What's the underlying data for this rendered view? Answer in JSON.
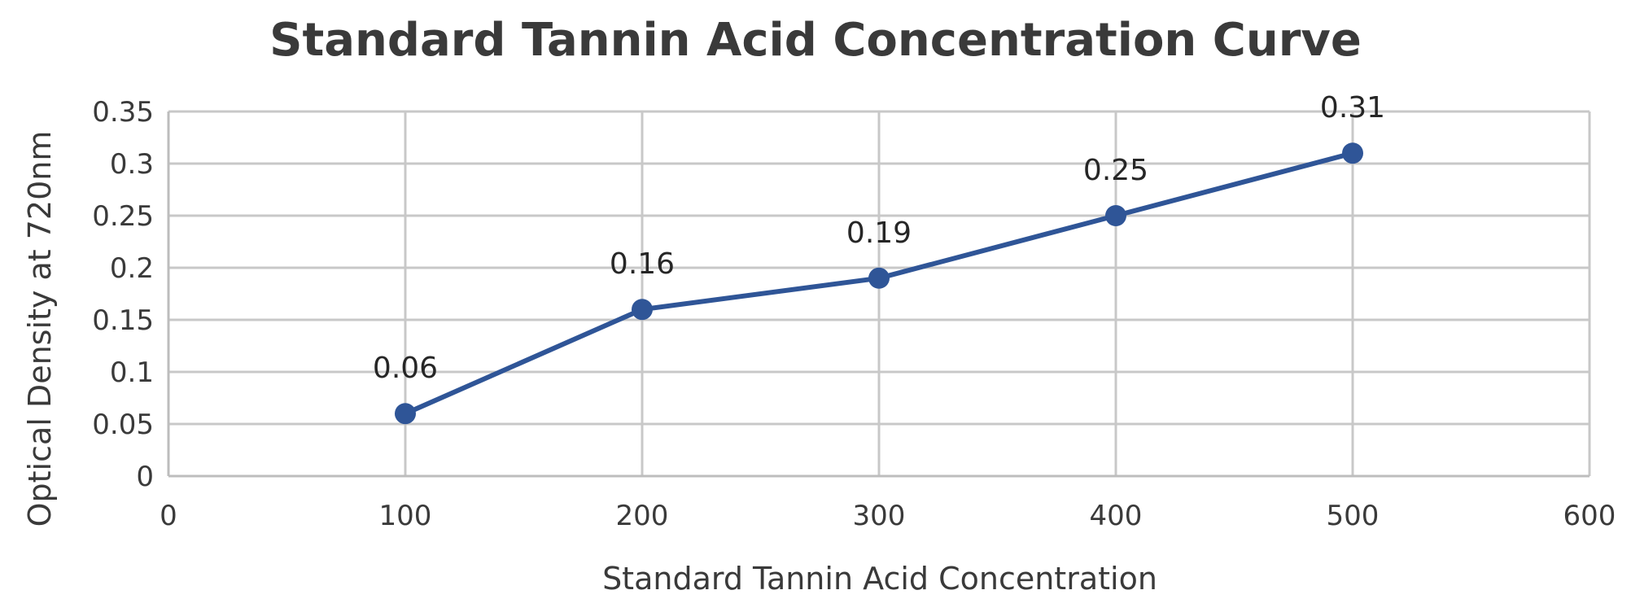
{
  "chart_data": {
    "type": "line",
    "title": "Standard Tannin Acid Concentration Curve",
    "xlabel": "Standard Tannin Acid Concentration",
    "ylabel": "Optical Density at 720nm",
    "xlim": [
      0,
      600
    ],
    "ylim": [
      0,
      0.35
    ],
    "x_ticks": [
      "0",
      "100",
      "200",
      "300",
      "400",
      "500",
      "600"
    ],
    "y_ticks": [
      "0",
      "0.05",
      "0.1",
      "0.15",
      "0.2",
      "0.25",
      "0.3",
      "0.35"
    ],
    "grid": true,
    "legend": "none",
    "series": [
      {
        "color": "#2f5597",
        "x": [
          100,
          200,
          300,
          400,
          500
        ],
        "y": [
          0.06,
          0.16,
          0.19,
          0.25,
          0.31
        ],
        "data_labels": [
          "0.06",
          "0.16",
          "0.19",
          "0.25",
          "0.31"
        ]
      }
    ]
  }
}
